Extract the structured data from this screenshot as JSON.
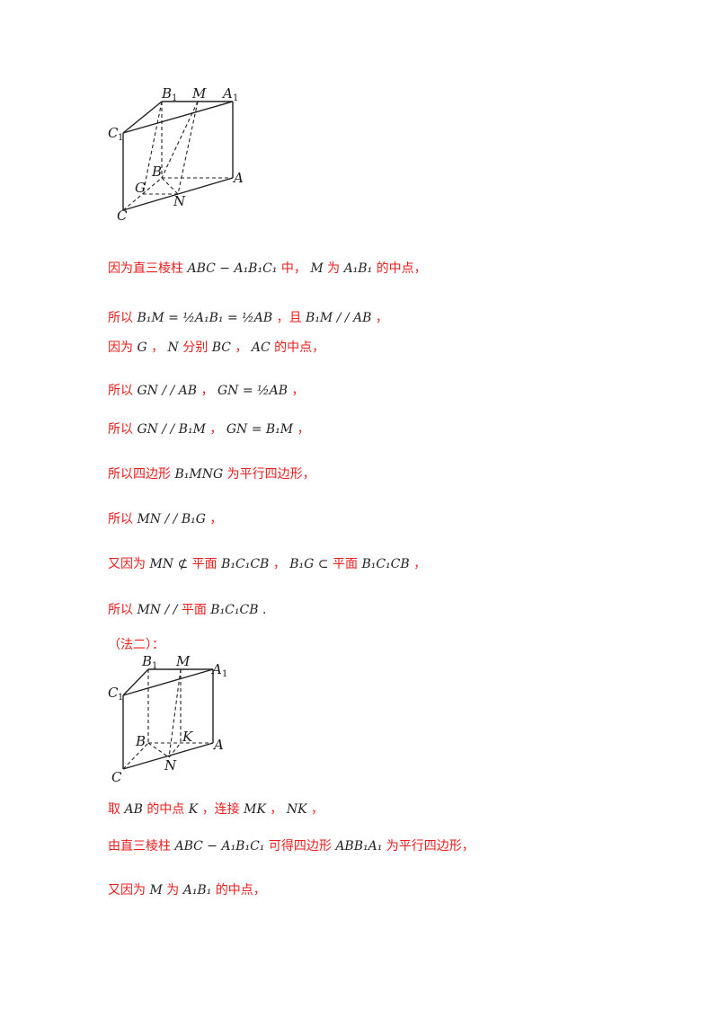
{
  "figure1_labels": {
    "B1": "B",
    "B1_sub": "1",
    "M": "M",
    "A1": "A",
    "A1_sub": "1",
    "C1": "C",
    "C1_sub": "1",
    "B": "B",
    "G": "G",
    "A": "A",
    "C": "C",
    "N": "N"
  },
  "figure2_labels": {
    "B1": "B",
    "B1_sub": "1",
    "M": "M",
    "A1": "A",
    "A1_sub": "1",
    "C1": "C",
    "C1_sub": "1",
    "B": "B",
    "K": "K",
    "A": "A",
    "C": "C",
    "N": "N"
  },
  "lines": [
    {
      "parts": [
        "因为直三棱柱",
        "ABC − A₁B₁C₁",
        "中，",
        "M",
        "为",
        "A₁B₁",
        "的中点，"
      ]
    },
    {
      "parts": [
        "所以",
        "B₁M = ½A₁B₁ = ½AB",
        "，且",
        "B₁M / / AB",
        "，"
      ]
    },
    {
      "parts": [
        "因为",
        "G",
        "，",
        "N",
        "分别",
        "BC",
        "，",
        "AC",
        "的中点，"
      ]
    },
    {
      "parts": [
        "所以",
        "GN / / AB",
        "，",
        "GN = ½AB",
        "，"
      ]
    },
    {
      "parts": [
        "所以",
        "GN / / B₁M",
        "，",
        "GN = B₁M",
        "，"
      ]
    },
    {
      "parts": [
        "所以四边形",
        "B₁MNG",
        "为平行四边形，"
      ]
    },
    {
      "parts": [
        "所以",
        "MN / / B₁G",
        "，"
      ]
    },
    {
      "parts": [
        "又因为",
        "MN ⊄",
        "平面",
        "B₁C₁CB",
        "，",
        "B₁G ⊂",
        "平面",
        "B₁C₁CB",
        "，"
      ]
    },
    {
      "parts": [
        "所以",
        "MN / /",
        "平面",
        "B₁C₁CB",
        "."
      ]
    },
    {
      "parts": [
        "（法二）："
      ]
    },
    {
      "parts": [
        "取",
        "AB",
        "的中点",
        "K",
        "，连接",
        "MK",
        "，",
        "NK",
        "，"
      ]
    },
    {
      "parts": [
        "由直三棱柱",
        "ABC − A₁B₁C₁",
        "可得四边形",
        "ABB₁A₁",
        "为平行四边形，"
      ]
    },
    {
      "parts": [
        "又因为",
        "M",
        "为",
        "A₁B₁",
        "的中点，"
      ]
    }
  ]
}
